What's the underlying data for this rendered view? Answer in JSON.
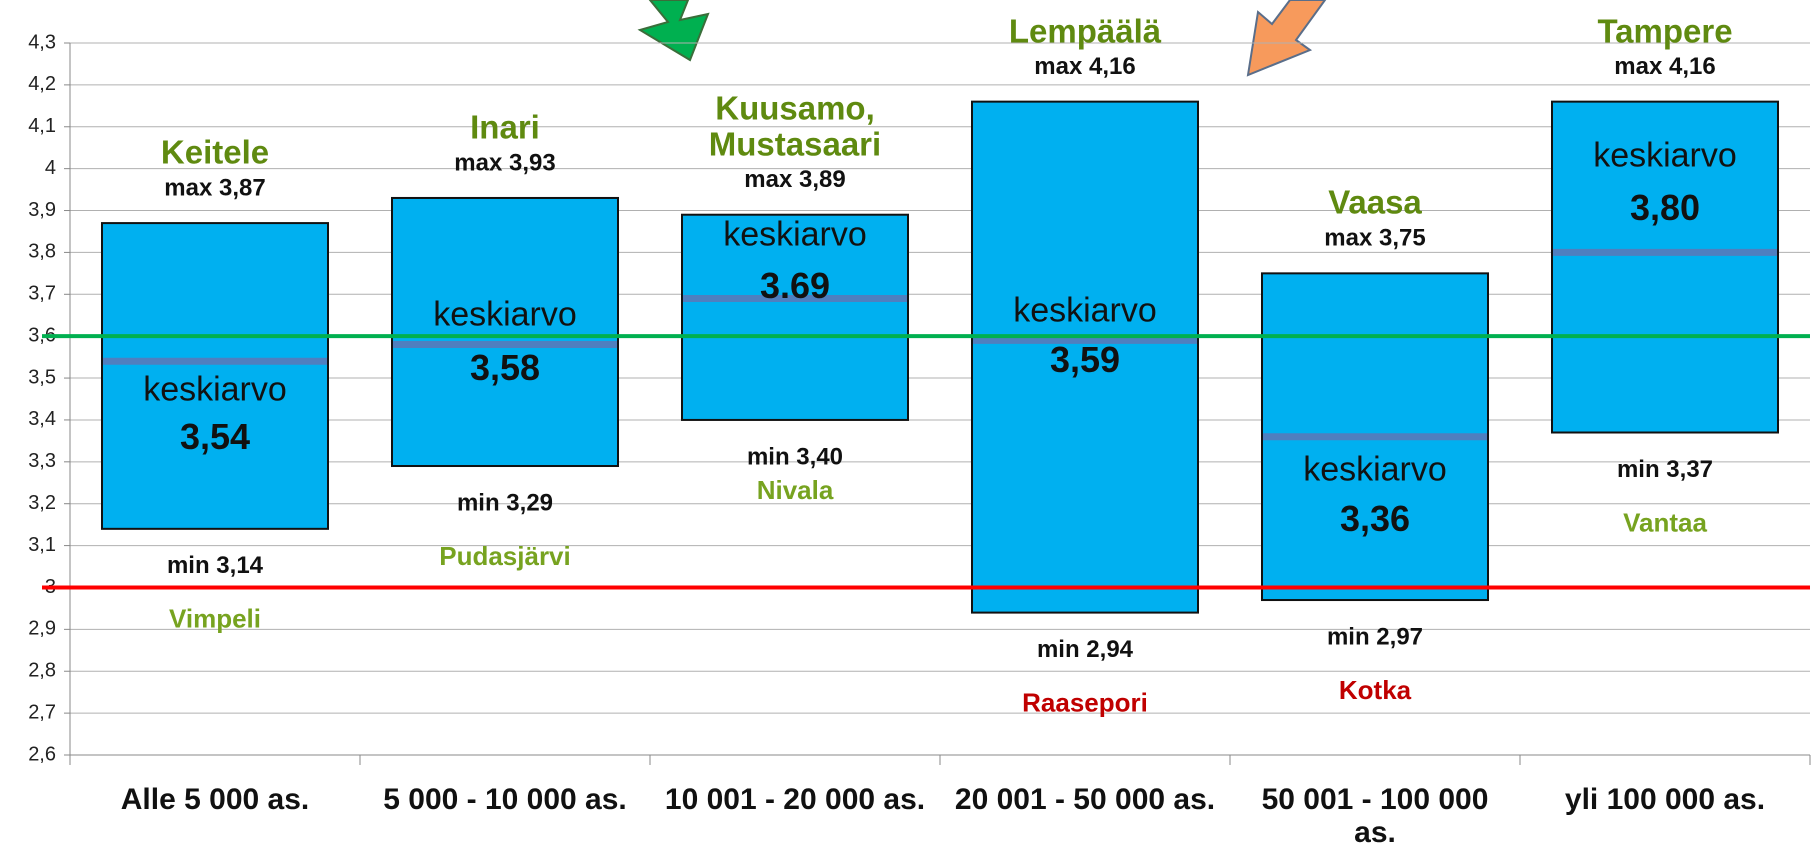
{
  "chart_data": {
    "type": "floating_bar",
    "categories": [
      "Alle 5 000 as.",
      "5 000 - 10 000 as.",
      "10 001 - 20 000 as.",
      "20 001 - 50 000 as.",
      "50 001 - 100 000 as.",
      "yli 100 000 as."
    ],
    "max": [
      3.87,
      3.93,
      3.89,
      4.16,
      3.75,
      4.16
    ],
    "max_labels": [
      "max 3,87",
      "max 3,93",
      "max 3,89",
      "max 4,16",
      "max 3,75",
      "max 4,16"
    ],
    "min": [
      3.14,
      3.29,
      3.4,
      2.94,
      2.97,
      3.37
    ],
    "min_labels": [
      "min 3,14",
      "min 3,29",
      "min 3,40",
      "min 2,94",
      "min 2,97",
      "min 3,37"
    ],
    "mean": [
      3.54,
      3.58,
      3.69,
      3.59,
      3.36,
      3.8
    ],
    "mean_labels": [
      "3,54",
      "3,58",
      "3.69",
      "3,59",
      "3,36",
      "3,80"
    ],
    "mean_caption": "keskiarvo",
    "max_names": [
      "Keitele",
      "Inari",
      "Kuusamo, Mustasaari",
      "Lempäälä",
      "Vaasa",
      "Tampere"
    ],
    "min_names": [
      "Vimpeli",
      "Pudasjärvi",
      "Nivala",
      "Raasepori",
      "Kotka",
      "Vantaa"
    ],
    "min_name_colors": [
      "#77a320",
      "#77a320",
      "#77a320",
      "#c00000",
      "#c00000",
      "#77a320"
    ],
    "max_name_color": "#5f8a10",
    "color": "#00b0f0",
    "mean_color": "#4f7fbf",
    "reference_lines": [
      {
        "value": 3.6,
        "color": "#00b050"
      },
      {
        "value": 3,
        "color": "#ff0000"
      }
    ],
    "ylim": [
      2.6,
      4.3
    ],
    "yticks": [
      {
        "value": 2.6,
        "label": "2,6"
      },
      {
        "value": 2.7,
        "label": "2,7"
      },
      {
        "value": 2.8,
        "label": "2,8"
      },
      {
        "value": 2.9,
        "label": "2,9"
      },
      3,
      {
        "value": 3.1,
        "label": "3,1"
      },
      {
        "value": 3.2,
        "label": "3,2"
      },
      {
        "value": 3.3,
        "label": "3,3"
      },
      {
        "value": 3.4,
        "label": "3,4"
      },
      {
        "value": 3.5,
        "label": "3,5"
      },
      {
        "value": 3.6,
        "label": "3,6"
      },
      {
        "value": 3.7,
        "label": "3,7"
      },
      {
        "value": 3.8,
        "label": "3,8"
      },
      {
        "value": 3.9,
        "label": "3,9"
      },
      4,
      {
        "value": 4.1,
        "label": "4,1"
      },
      {
        "value": 4.2,
        "label": "4,2"
      },
      {
        "value": 4.3,
        "label": "4,3"
      }
    ],
    "grid": true
  }
}
